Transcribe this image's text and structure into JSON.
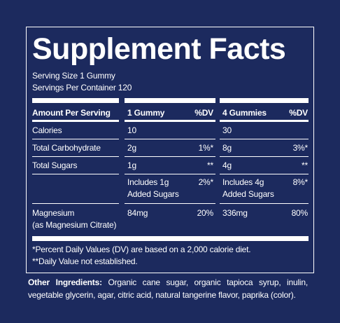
{
  "title": "Supplement Facts",
  "serving_size": "Serving Size 1 Gummy",
  "servings_per_container": "Servings Per Container 120",
  "table": {
    "header": [
      "Amount Per Serving",
      "1 Gummy",
      "%DV",
      "4 Gummies",
      "%DV"
    ],
    "rows": [
      {
        "name": [
          "Calories"
        ],
        "amount_1": [
          "10"
        ],
        "amount_4": [
          "30"
        ]
      },
      {
        "name": [
          "Total Carbohydrate"
        ],
        "amount_1": [
          "2g"
        ],
        "dv_1": "1%*",
        "amount_4": [
          "8g"
        ],
        "dv_4": "3%*"
      },
      {
        "name": [
          "Total Sugars"
        ],
        "amount_1": [
          "1g"
        ],
        "dv_1": "**",
        "amount_4": [
          "4g"
        ],
        "dv_4": "**"
      },
      {
        "amount_1": [
          "Includes 1g",
          "Added Sugars"
        ],
        "dv_1": "2%*",
        "amount_4": [
          "Includes 4g",
          "Added Sugars"
        ],
        "dv_4": "8%*"
      },
      {
        "name": [
          "Magnesium",
          "(as Magnesium Citrate)"
        ],
        "amount_1": [
          "84mg"
        ],
        "dv_1": "20%",
        "amount_4": [
          "336mg"
        ],
        "dv_4": "80%"
      }
    ]
  },
  "footnotes": [
    "*Percent Daily Values (DV) are based on a 2,000 calorie diet.",
    "**Daily Value not established."
  ],
  "other_ingredients": {
    "label": "Other Ingredients:",
    "text": "Organic cane sugar, organic tapioca syrup, inulin, vegetable glycerin, agar, citric acid, natural tangerine flavor, paprika (color)."
  }
}
